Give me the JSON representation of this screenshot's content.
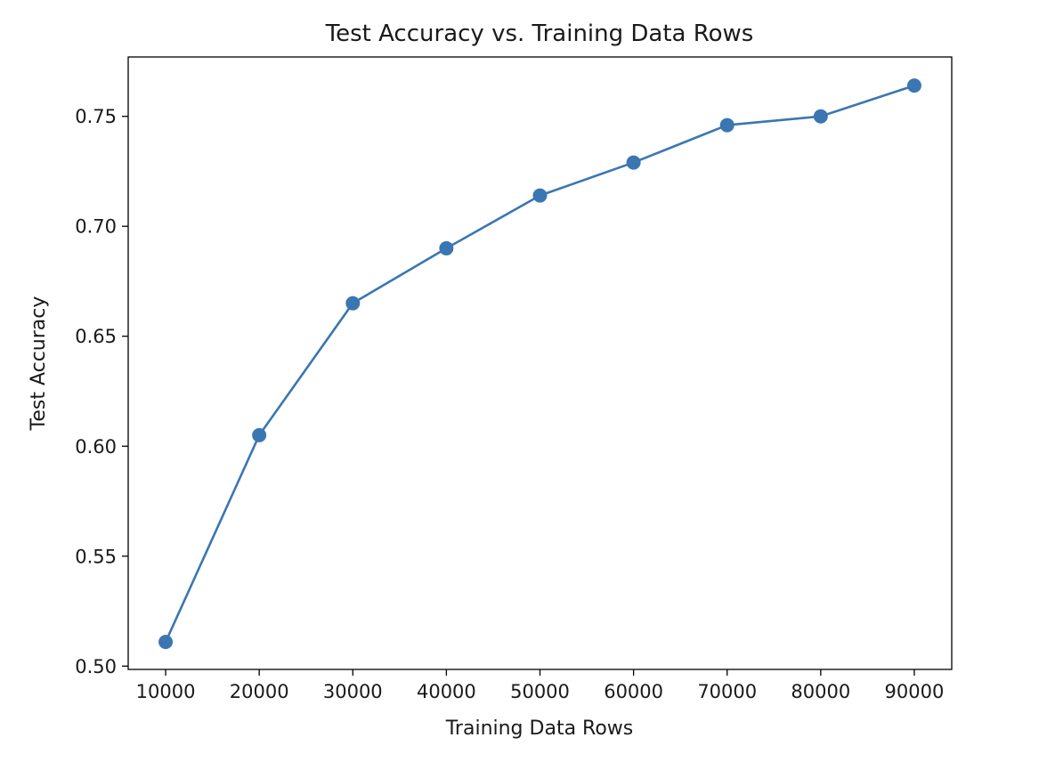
{
  "chart_data": {
    "type": "line",
    "title": "Test Accuracy vs. Training Data Rows",
    "xlabel": "Training Data Rows",
    "ylabel": "Test Accuracy",
    "x": [
      10000,
      20000,
      30000,
      40000,
      50000,
      60000,
      70000,
      80000,
      90000
    ],
    "series": [
      {
        "name": "",
        "values": [
          0.511,
          0.605,
          0.665,
          0.69,
          0.714,
          0.729,
          0.746,
          0.75,
          0.764
        ],
        "color": "#3a76b2"
      }
    ],
    "xlim": [
      6000,
      94000
    ],
    "ylim": [
      0.4985,
      0.777
    ],
    "xticks": [
      10000,
      20000,
      30000,
      40000,
      50000,
      60000,
      70000,
      80000,
      90000
    ],
    "xtick_labels": [
      "10000",
      "20000",
      "30000",
      "40000",
      "50000",
      "60000",
      "70000",
      "80000",
      "90000"
    ],
    "yticks": [
      0.5,
      0.55,
      0.6,
      0.65,
      0.7,
      0.75
    ],
    "ytick_labels": [
      "0.50",
      "0.55",
      "0.60",
      "0.65",
      "0.70",
      "0.75"
    ],
    "grid": false,
    "markers": true
  }
}
